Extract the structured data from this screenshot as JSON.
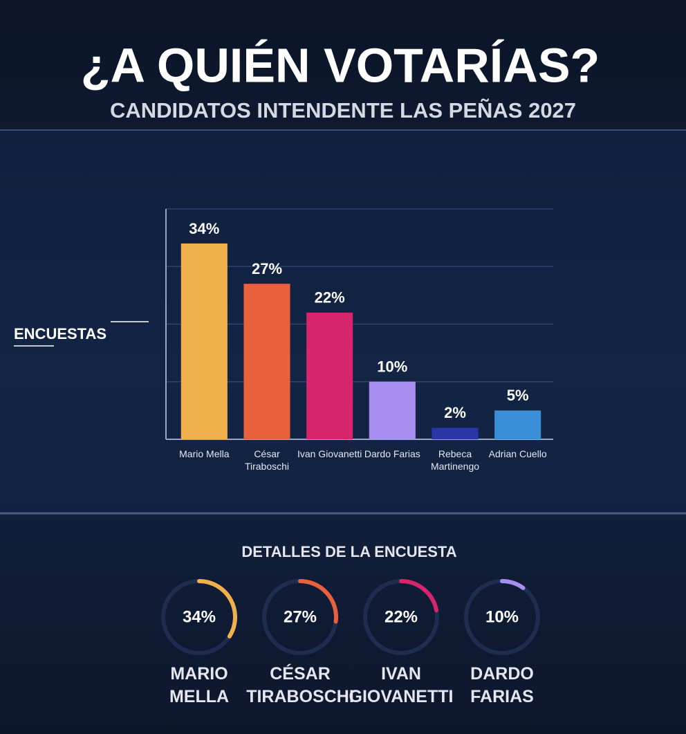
{
  "header": {
    "title": "¿A QUIÉN VOTARÍAS?",
    "subtitle": "CANDIDATOS INTENDENTE LAS PEÑAS 2027"
  },
  "side_label": "ENCUESTAS",
  "chart_data": [
    {
      "type": "bar",
      "categories": [
        "Mario Mella",
        "César Tiraboschi",
        "Ivan Giovanetti",
        "Dardo Farias",
        "Rebeca Martinengo",
        "Adrian Cuello"
      ],
      "values": [
        34,
        27,
        22,
        10,
        2,
        5
      ],
      "value_labels": [
        "34%",
        "27%",
        "22%",
        "10%",
        "2%",
        "5%"
      ],
      "colors": [
        "#f0b04c",
        "#e8613c",
        "#d6256b",
        "#a78ef0",
        "#2a35a6",
        "#3a8fd8"
      ],
      "ylim": [
        0,
        40
      ],
      "yticks": [
        10,
        20,
        30,
        40
      ],
      "grid": true
    },
    {
      "type": "gauge",
      "title": "DETALLES DE LA ENCUESTA",
      "categories": [
        "MARIO MELLA",
        "CÉSAR TIRABOSCHI",
        "IVAN GIOVANETTI",
        "DARDO FARIAS"
      ],
      "values": [
        34,
        27,
        22,
        10
      ],
      "value_labels": [
        "34%",
        "27%",
        "22%",
        "10%"
      ],
      "colors": [
        "#f0b04c",
        "#e8613c",
        "#d6256b",
        "#a78ef0"
      ],
      "ylim": [
        0,
        100
      ]
    }
  ]
}
